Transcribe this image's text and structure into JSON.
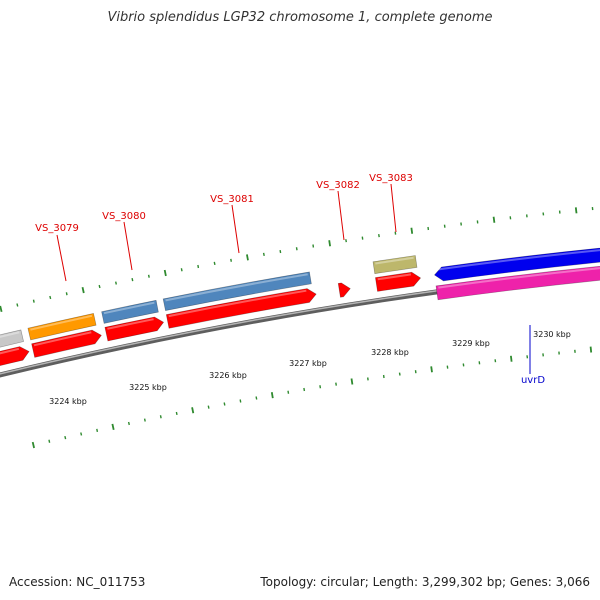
{
  "title": "Vibrio splendidus LGP32 chromosome 1, complete genome",
  "footer": {
    "accession": "Accession: NC_011753",
    "summary": "Topology: circular; Length: 3,299,302 bp; Genes: 3,066"
  },
  "colors": {
    "backbone": "#8a8a8a",
    "tick": "#2f8a2f",
    "label_red": "#dd0000",
    "label_blue": "#0000cc",
    "strand_red": "#ff0000",
    "gray_feature": "#c8c8c8",
    "orange_feature": "#ff9900",
    "steelblue_feature": "#4f86bd",
    "khaki_feature": "#bdb76b",
    "blue_feature": "#0000ee",
    "magenta_feature": "#ee22aa"
  },
  "kbp_ticks": [
    "3224 kbp",
    "3225 kbp",
    "3226 kbp",
    "3227 kbp",
    "3228 kbp",
    "3229 kbp",
    "3230 kbp"
  ],
  "gene_labels": [
    {
      "text": "VS_3079",
      "color": "label_red"
    },
    {
      "text": "VS_3080",
      "color": "label_red"
    },
    {
      "text": "VS_3081",
      "color": "label_red"
    },
    {
      "text": "VS_3082",
      "color": "label_red"
    },
    {
      "text": "VS_3083",
      "color": "label_red"
    },
    {
      "text": "uvrD",
      "color": "label_blue"
    }
  ],
  "features": [
    {
      "name": "gray-feature",
      "color": "gray_feature"
    },
    {
      "name": "orange-feature",
      "color": "orange_feature"
    },
    {
      "name": "steelblue-feature-1",
      "color": "steelblue_feature"
    },
    {
      "name": "steelblue-feature-2",
      "color": "steelblue_feature"
    },
    {
      "name": "khaki-feature",
      "color": "khaki_feature"
    },
    {
      "name": "blue-feature",
      "color": "blue_feature"
    },
    {
      "name": "magenta-feature",
      "color": "magenta_feature"
    }
  ]
}
